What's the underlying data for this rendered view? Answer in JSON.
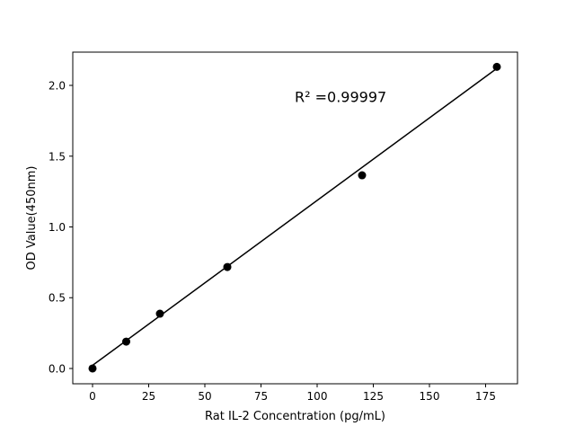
{
  "chart_data": {
    "type": "scatter",
    "title": "",
    "xlabel": "Rat IL-2 Concentration (pg/mL)",
    "ylabel": "OD Value(450nm)",
    "xlim": [
      -8.8,
      189.2
    ],
    "ylim": [
      -0.108,
      2.235
    ],
    "xticks": [
      0,
      25,
      50,
      75,
      100,
      125,
      150,
      175
    ],
    "xtick_labels": [
      "0",
      "25",
      "50",
      "75",
      "100",
      "125",
      "150",
      "175"
    ],
    "yticks": [
      0.0,
      0.5,
      1.0,
      1.5,
      2.0
    ],
    "ytick_labels": [
      "0.0",
      "0.5",
      "1.0",
      "1.5",
      "2.0"
    ],
    "grid": false,
    "series": [
      {
        "type": "scatter",
        "color": "#000000",
        "x": [
          0,
          15,
          30,
          60,
          120,
          180
        ],
        "y": [
          0.0,
          0.19,
          0.387,
          0.717,
          1.365,
          2.131
        ]
      },
      {
        "type": "line",
        "color": "#000000",
        "x": [
          0,
          180
        ],
        "y": [
          0.022,
          2.12
        ]
      }
    ],
    "annotations": [
      {
        "text": "R² =0.99997",
        "x": 90,
        "y": 1.92
      }
    ]
  }
}
